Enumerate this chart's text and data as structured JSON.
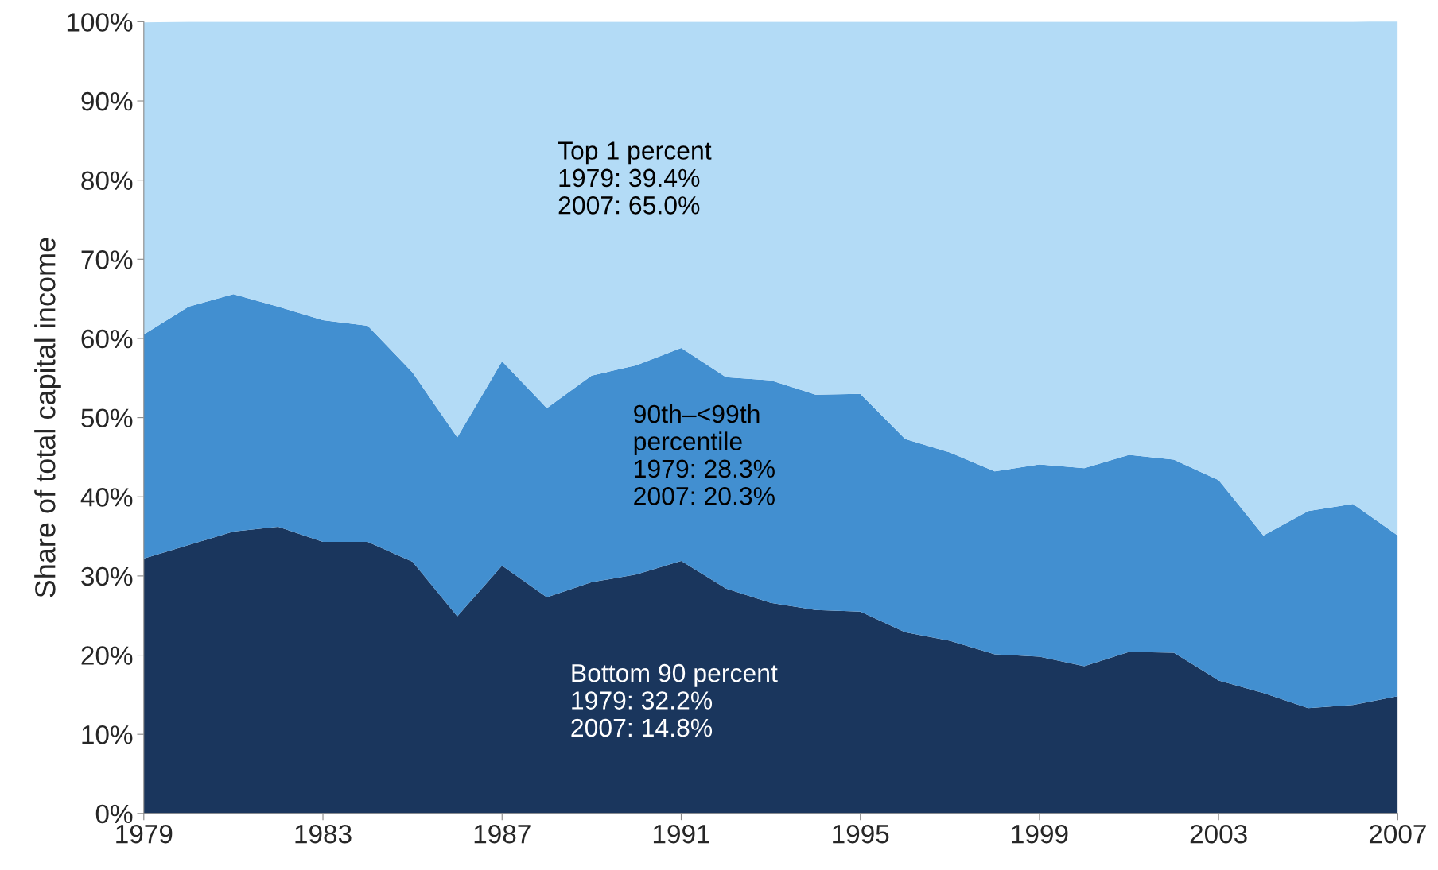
{
  "chart_data": {
    "type": "area",
    "stacked": true,
    "ylabel": "Share of total capital income",
    "x": [
      1979,
      1980,
      1981,
      1982,
      1983,
      1984,
      1985,
      1986,
      1987,
      1988,
      1989,
      1990,
      1991,
      1992,
      1993,
      1994,
      1995,
      1996,
      1997,
      1998,
      1999,
      2000,
      2001,
      2002,
      2003,
      2004,
      2005,
      2006,
      2007
    ],
    "series": [
      {
        "color": "#1a365d",
        "values": [
          32.2,
          33.9,
          35.6,
          36.2,
          34.3,
          34.3,
          31.8,
          24.9,
          31.3,
          27.3,
          29.2,
          30.2,
          31.9,
          28.4,
          26.6,
          25.7,
          25.5,
          22.9,
          21.8,
          20.1,
          19.8,
          18.6,
          20.4,
          20.3,
          16.8,
          15.2,
          13.3,
          13.7,
          14.8
        ]
      },
      {
        "color": "#428fd0",
        "values": [
          28.3,
          30.1,
          30.0,
          27.8,
          28.0,
          27.3,
          23.9,
          22.6,
          25.8,
          23.9,
          26.1,
          26.4,
          26.9,
          26.7,
          28.1,
          27.2,
          27.5,
          24.4,
          23.8,
          23.1,
          24.3,
          25.0,
          24.9,
          24.4,
          25.3,
          19.9,
          24.9,
          25.4,
          20.3
        ]
      },
      {
        "color": "#b3dbf6",
        "values": [
          39.4,
          36.0,
          34.4,
          36.0,
          37.7,
          38.4,
          44.3,
          52.5,
          42.9,
          48.8,
          44.7,
          43.4,
          41.2,
          44.9,
          45.3,
          47.1,
          47.0,
          52.7,
          54.4,
          56.8,
          55.9,
          56.4,
          54.7,
          55.3,
          57.9,
          64.9,
          61.8,
          60.9,
          65.0
        ]
      }
    ],
    "xlim": [
      1979,
      2007
    ],
    "xticks": [
      1979,
      1983,
      1987,
      1991,
      1995,
      1999,
      2003,
      2007
    ],
    "ylim": [
      0,
      100
    ],
    "yticks": [
      {
        "value": 0,
        "label": "0%"
      },
      {
        "value": 10,
        "label": "10%"
      },
      {
        "value": 20,
        "label": "20%"
      },
      {
        "value": 30,
        "label": "30%"
      },
      {
        "value": 40,
        "label": "40%"
      },
      {
        "value": 50,
        "label": "50%"
      },
      {
        "value": 60,
        "label": "60%"
      },
      {
        "value": 70,
        "label": "70%"
      },
      {
        "value": 80,
        "label": "80%"
      },
      {
        "value": 90,
        "label": "90%"
      },
      {
        "value": 100,
        "label": "100%"
      }
    ],
    "grid": false,
    "legend": false,
    "annotations": [
      "Top 1 percent\n1979: 39.4%\n2007: 65.0%",
      "90th–<99th\npercentile\n1979: 28.3%\n2007: 20.3%",
      "Bottom 90 percent\n1979: 32.2%\n2007: 14.8%"
    ]
  }
}
